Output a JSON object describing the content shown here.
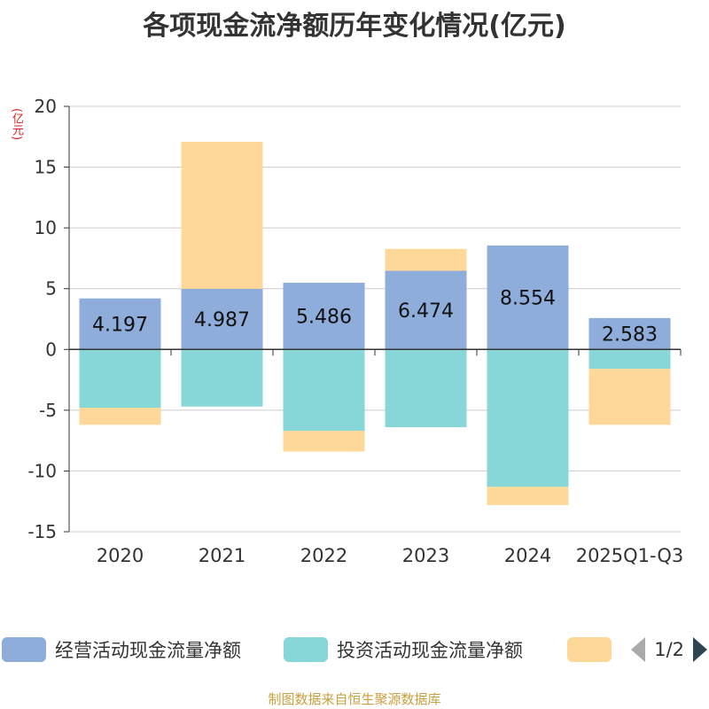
{
  "title": "各项现金流净额历年变化情况(亿元)",
  "unit_label": "(亿元)",
  "source": "制图数据来自恒生聚源数据库",
  "legend": {
    "items": [
      {
        "label": "经营活动现金流量净额",
        "color": "#8eaddb"
      },
      {
        "label": "投资活动现金流量净额",
        "color": "#87d6d8"
      },
      {
        "label": "",
        "color": "#fed899"
      }
    ],
    "page": "1/2"
  },
  "chart_data": {
    "type": "bar",
    "stacked": true,
    "categories": [
      "2020",
      "2021",
      "2022",
      "2023",
      "2024",
      "2025Q1-Q3"
    ],
    "ylim": [
      -15,
      20
    ],
    "yticks": [
      20,
      15,
      10,
      5,
      0,
      -5,
      -10,
      -15
    ],
    "series": [
      {
        "name": "经营活动现金流量净额",
        "color": "#8eaddb",
        "values": [
          4.197,
          4.987,
          5.486,
          6.474,
          8.554,
          2.583
        ],
        "labeled": true
      },
      {
        "name": "投资活动现金流量净额",
        "color": "#87d6d8",
        "values": [
          -4.8,
          -4.7,
          -6.7,
          -6.4,
          -11.3,
          -1.6
        ],
        "labeled": false
      },
      {
        "name": "",
        "color": "#fed899",
        "values": [
          -1.4,
          12.1,
          -1.7,
          1.8,
          -1.5,
          -4.6
        ],
        "labeled": false
      }
    ],
    "data_labels": [
      "4.197",
      "4.987",
      "5.486",
      "6.474",
      "8.554",
      "2.583"
    ]
  }
}
